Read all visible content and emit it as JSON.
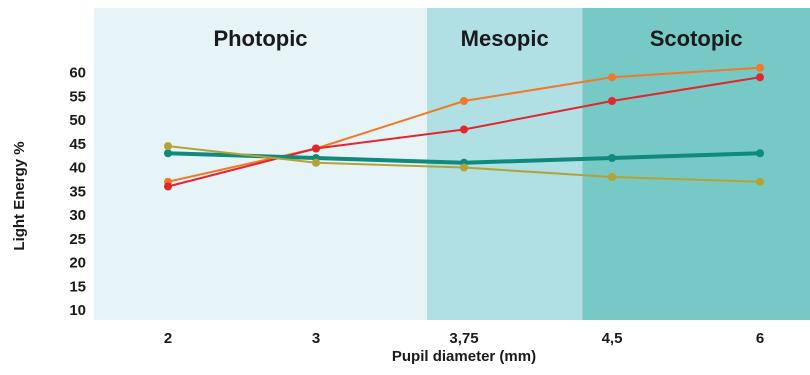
{
  "chart_data": {
    "type": "line",
    "title": "",
    "xlabel": "Pupil diameter (mm)",
    "ylabel": "Light Energy %",
    "categories": [
      "2",
      "3",
      "3,75",
      "4,5",
      "6"
    ],
    "y_ticks": [
      "10",
      "15",
      "20",
      "25",
      "30",
      "35",
      "40",
      "45",
      "50",
      "55",
      "60"
    ],
    "ylim": [
      8,
      65
    ],
    "grid": false,
    "legend": "none",
    "zones": [
      {
        "label": "Photopic",
        "from": 0,
        "to": 2.25,
        "color": "#e6f4f8"
      },
      {
        "label": "Mesopic",
        "from": 2.25,
        "to": 3.3,
        "color": "#b0dfe4"
      },
      {
        "label": "Scotopic",
        "from": 3.3,
        "to": 4.35,
        "color": "#77c9c6"
      }
    ],
    "series": [
      {
        "values": [
          37,
          44,
          54,
          59,
          61
        ],
        "color": "#f07a2a",
        "width": 2
      },
      {
        "values": [
          36,
          44,
          48,
          54,
          59
        ],
        "color": "#e2262e",
        "width": 2
      },
      {
        "values": [
          43,
          42,
          41,
          42,
          43
        ],
        "color": "#0f8a7c",
        "width": 4
      },
      {
        "values": [
          44.5,
          41,
          40,
          38,
          37
        ],
        "color": "#b3a336",
        "width": 2
      }
    ]
  }
}
